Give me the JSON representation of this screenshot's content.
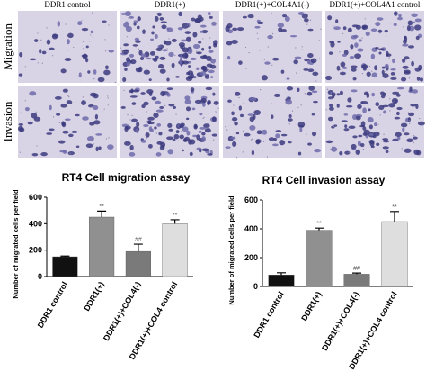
{
  "panels": {
    "columns": [
      "DDR1 control",
      "DDR1(+)",
      "DDR1(+)+COL4A1(-)",
      "DDR1(+)+COL4A1 control"
    ],
    "rows": [
      "Migration",
      "Invasion"
    ]
  },
  "chart_data": [
    {
      "type": "bar",
      "title": "RT4 Cell migration assay",
      "y_label": "Number of migrated cells per field",
      "categories": [
        "DDR1 control",
        "DDR1(+)",
        "DDR1(+)+COL4(-)",
        "DDR1(+)+COL4 control"
      ],
      "values": [
        150,
        450,
        190,
        400
      ],
      "errors": [
        5,
        45,
        55,
        30
      ],
      "annotations": [
        null,
        "**",
        "##",
        "**"
      ],
      "colors": [
        "#111111",
        "#909090",
        "#7a7a7a",
        "#dedede"
      ],
      "ylim": [
        0,
        600
      ],
      "yticks": [
        0,
        200,
        400,
        600
      ]
    },
    {
      "type": "bar",
      "title": "RT4 Cell invasion assay",
      "y_label": "Number of migrated cells per field",
      "categories": [
        "DDR1 control",
        "DDR1(+)",
        "DDR1(+)+COL4(-)",
        "DDR1(+)+COL4 control"
      ],
      "values": [
        80,
        390,
        85,
        450
      ],
      "errors": [
        15,
        15,
        8,
        70
      ],
      "annotations": [
        null,
        "**",
        "##",
        "**"
      ],
      "colors": [
        "#111111",
        "#909090",
        "#7a7a7a",
        "#dedede"
      ],
      "ylim": [
        0,
        600
      ],
      "yticks": [
        0,
        200,
        400,
        600
      ]
    }
  ]
}
